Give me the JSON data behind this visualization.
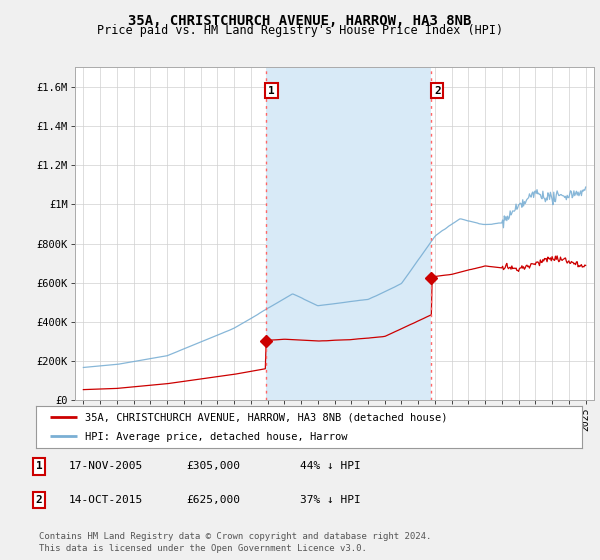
{
  "title": "35A, CHRISTCHURCH AVENUE, HARROW, HA3 8NB",
  "subtitle": "Price paid vs. HM Land Registry's House Price Index (HPI)",
  "ylabel_ticks": [
    "£0",
    "£200K",
    "£400K",
    "£600K",
    "£800K",
    "£1M",
    "£1.2M",
    "£1.4M",
    "£1.6M"
  ],
  "ytick_vals": [
    0,
    200000,
    400000,
    600000,
    800000,
    1000000,
    1200000,
    1400000,
    1600000
  ],
  "ylim": [
    0,
    1700000
  ],
  "xlim_start": 1994.5,
  "xlim_end": 2025.5,
  "xtick_years": [
    1995,
    1996,
    1997,
    1998,
    1999,
    2000,
    2001,
    2002,
    2003,
    2004,
    2005,
    2006,
    2007,
    2008,
    2009,
    2010,
    2011,
    2012,
    2013,
    2014,
    2015,
    2016,
    2017,
    2018,
    2019,
    2020,
    2021,
    2022,
    2023,
    2024,
    2025
  ],
  "hpi_color": "#7aafd4",
  "price_color": "#cc0000",
  "vline_color": "#ff6666",
  "shade_color": "#d8eaf7",
  "sale1_year": 2005.88,
  "sale1_price": 305000,
  "sale1_label": "1",
  "sale2_year": 2015.79,
  "sale2_price": 625000,
  "sale2_label": "2",
  "legend_entry1": "35A, CHRISTCHURCH AVENUE, HARROW, HA3 8NB (detached house)",
  "legend_entry2": "HPI: Average price, detached house, Harrow",
  "table_rows": [
    {
      "num": "1",
      "date": "17-NOV-2005",
      "price": "£305,000",
      "pct": "44% ↓ HPI"
    },
    {
      "num": "2",
      "date": "14-OCT-2015",
      "price": "£625,000",
      "pct": "37% ↓ HPI"
    }
  ],
  "footer": "Contains HM Land Registry data © Crown copyright and database right 2024.\nThis data is licensed under the Open Government Licence v3.0.",
  "background_color": "#f0f0f0",
  "plot_bg_color": "#ffffff",
  "grid_color": "#d0d0d0"
}
